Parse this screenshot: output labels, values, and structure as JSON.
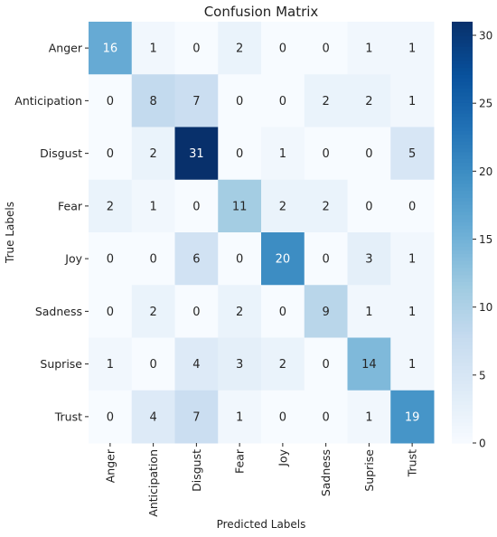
{
  "chart_data": {
    "type": "heatmap",
    "title": "Confusion Matrix",
    "xlabel": "Predicted Labels",
    "ylabel": "True Labels",
    "x_categories": [
      "Anger",
      "Anticipation",
      "Disgust",
      "Fear",
      "Joy",
      "Sadness",
      "Suprise",
      "Trust"
    ],
    "y_categories": [
      "Anger",
      "Anticipation",
      "Disgust",
      "Fear",
      "Joy",
      "Sadness",
      "Suprise",
      "Trust"
    ],
    "values": [
      [
        16,
        1,
        0,
        2,
        0,
        0,
        1,
        1
      ],
      [
        0,
        8,
        7,
        0,
        0,
        2,
        2,
        1
      ],
      [
        0,
        2,
        31,
        0,
        1,
        0,
        0,
        5
      ],
      [
        2,
        1,
        0,
        11,
        2,
        2,
        0,
        0
      ],
      [
        0,
        0,
        6,
        0,
        20,
        0,
        3,
        1
      ],
      [
        0,
        2,
        0,
        2,
        0,
        9,
        1,
        1
      ],
      [
        1,
        0,
        4,
        3,
        2,
        0,
        14,
        1
      ],
      [
        0,
        4,
        7,
        1,
        0,
        0,
        1,
        19
      ]
    ],
    "colorscale": "Blues",
    "vmin": 0,
    "vmax": 31,
    "colorbar_ticks": [
      0,
      5,
      10,
      15,
      20,
      25,
      30
    ]
  }
}
